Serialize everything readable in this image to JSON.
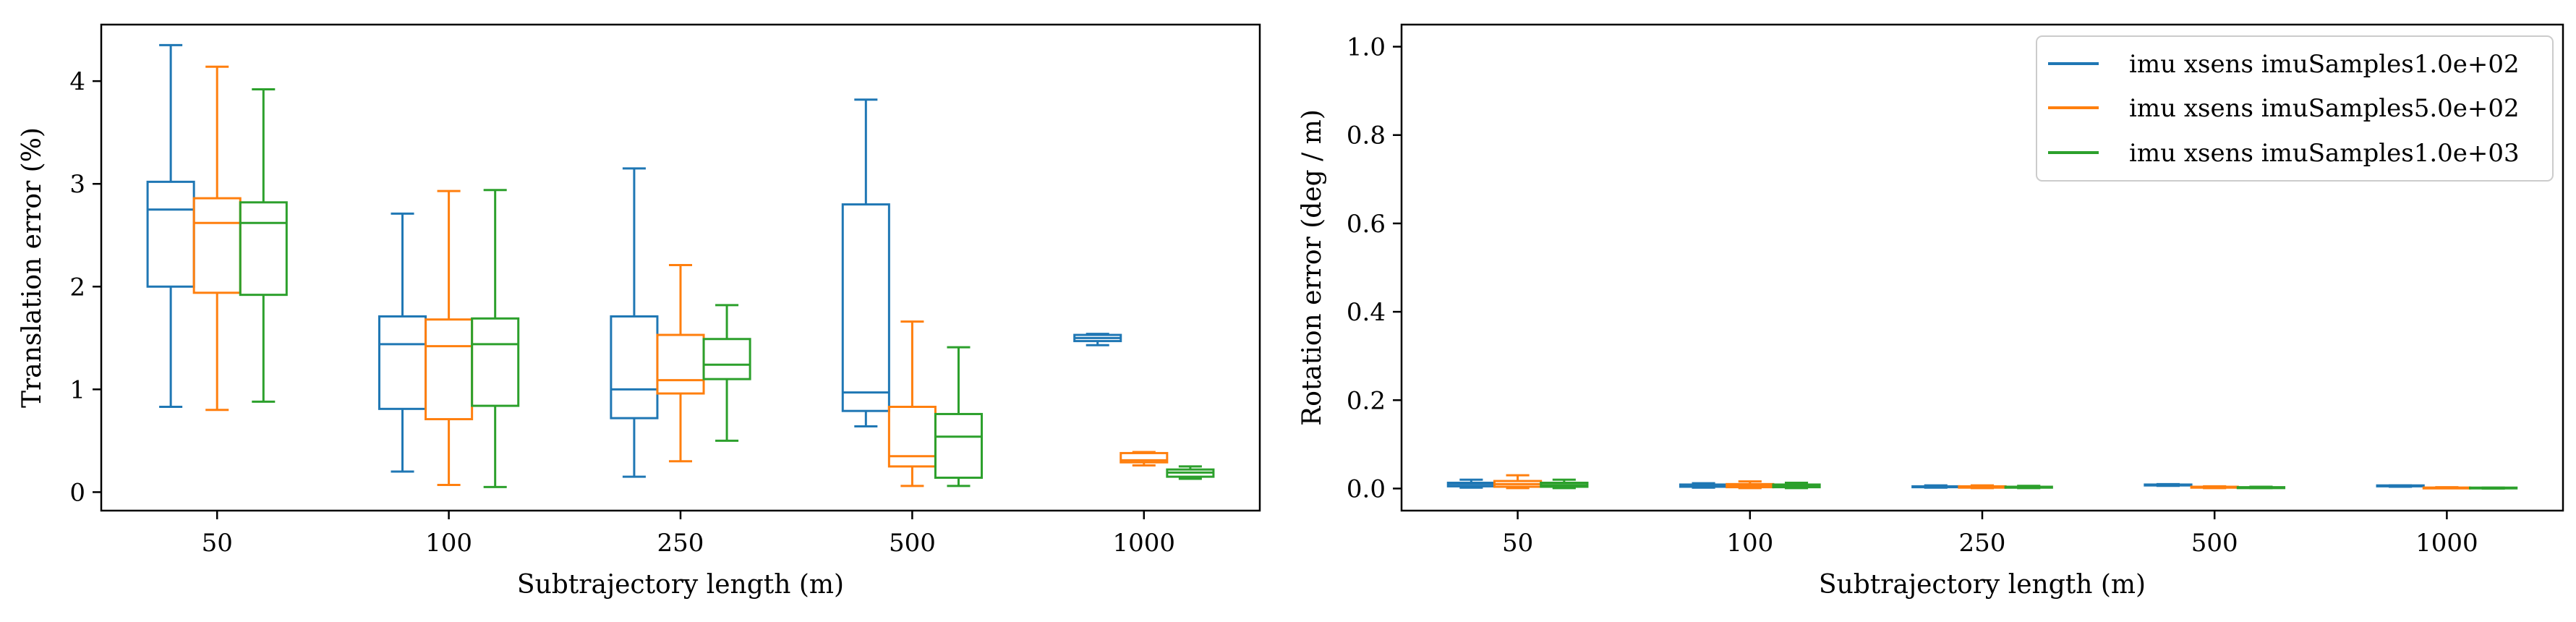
{
  "chart_data": [
    {
      "type": "box",
      "xlabel": "Subtrajectory length (m)",
      "ylabel": "Translation error (%)",
      "categories": [
        "50",
        "100",
        "250",
        "500",
        "1000"
      ],
      "ylim": [
        -0.18,
        4.55
      ],
      "yticks": [
        "0",
        "1",
        "2",
        "3",
        "4"
      ],
      "grid": false,
      "series": [
        {
          "name": "imu xsens imuSamples1.0e+02",
          "color": "#1f77b4",
          "boxes": [
            {
              "whislo": 0.83,
              "q1": 2.0,
              "med": 2.75,
              "q3": 3.02,
              "whishi": 4.35
            },
            {
              "whislo": 0.2,
              "q1": 0.81,
              "med": 1.44,
              "q3": 1.71,
              "whishi": 2.71
            },
            {
              "whislo": 0.15,
              "q1": 0.72,
              "med": 1.0,
              "q3": 1.71,
              "whishi": 3.15
            },
            {
              "whislo": 0.64,
              "q1": 0.79,
              "med": 0.97,
              "q3": 2.8,
              "whishi": 3.82
            },
            {
              "whislo": 1.43,
              "q1": 1.47,
              "med": 1.5,
              "q3": 1.53,
              "whishi": 1.54
            }
          ]
        },
        {
          "name": "imu xsens imuSamples5.0e+02",
          "color": "#ff7f0e",
          "boxes": [
            {
              "whislo": 0.8,
              "q1": 1.94,
              "med": 2.62,
              "q3": 2.86,
              "whishi": 4.14
            },
            {
              "whislo": 0.07,
              "q1": 0.71,
              "med": 1.42,
              "q3": 1.68,
              "whishi": 2.93
            },
            {
              "whislo": 0.3,
              "q1": 0.96,
              "med": 1.09,
              "q3": 1.53,
              "whishi": 2.21
            },
            {
              "whislo": 0.06,
              "q1": 0.25,
              "med": 0.35,
              "q3": 0.83,
              "whishi": 1.66
            },
            {
              "whislo": 0.26,
              "q1": 0.29,
              "med": 0.31,
              "q3": 0.38,
              "whishi": 0.39
            }
          ]
        },
        {
          "name": "imu xsens imuSamples1.0e+03",
          "color": "#2ca02c",
          "boxes": [
            {
              "whislo": 0.88,
              "q1": 1.92,
              "med": 2.62,
              "q3": 2.82,
              "whishi": 3.92
            },
            {
              "whislo": 0.05,
              "q1": 0.84,
              "med": 1.44,
              "q3": 1.69,
              "whishi": 2.94
            },
            {
              "whislo": 0.5,
              "q1": 1.1,
              "med": 1.24,
              "q3": 1.49,
              "whishi": 1.82
            },
            {
              "whislo": 0.06,
              "q1": 0.14,
              "med": 0.54,
              "q3": 0.76,
              "whishi": 1.41
            },
            {
              "whislo": 0.13,
              "q1": 0.15,
              "med": 0.19,
              "q3": 0.22,
              "whishi": 0.25
            }
          ]
        }
      ]
    },
    {
      "type": "box",
      "xlabel": "Subtrajectory length (m)",
      "ylabel": "Rotation error (deg / m)",
      "categories": [
        "50",
        "100",
        "250",
        "500",
        "1000"
      ],
      "ylim": [
        -0.05,
        1.05
      ],
      "yticks": [
        "0.0",
        "0.2",
        "0.4",
        "0.6",
        "0.8",
        "1.0"
      ],
      "grid": false,
      "legend_position": "top-right",
      "series": [
        {
          "name": "imu xsens imuSamples1.0e+02",
          "color": "#1f77b4",
          "boxes": [
            {
              "whislo": 0.002,
              "q1": 0.005,
              "med": 0.01,
              "q3": 0.013,
              "whishi": 0.02
            },
            {
              "whislo": 0.002,
              "q1": 0.004,
              "med": 0.007,
              "q3": 0.009,
              "whishi": 0.012
            },
            {
              "whislo": 0.002,
              "q1": 0.003,
              "med": 0.004,
              "q3": 0.005,
              "whishi": 0.007
            },
            {
              "whislo": 0.006,
              "q1": 0.007,
              "med": 0.008,
              "q3": 0.009,
              "whishi": 0.01
            },
            {
              "whislo": 0.004,
              "q1": 0.005,
              "med": 0.006,
              "q3": 0.007,
              "whishi": 0.007
            }
          ]
        },
        {
          "name": "imu xsens imuSamples5.0e+02",
          "color": "#ff7f0e",
          "boxes": [
            {
              "whislo": 0.001,
              "q1": 0.004,
              "med": 0.01,
              "q3": 0.017,
              "whishi": 0.03
            },
            {
              "whislo": 0.001,
              "q1": 0.003,
              "med": 0.007,
              "q3": 0.01,
              "whishi": 0.016
            },
            {
              "whislo": 0.001,
              "q1": 0.002,
              "med": 0.004,
              "q3": 0.005,
              "whishi": 0.007
            },
            {
              "whislo": 0.001,
              "q1": 0.002,
              "med": 0.003,
              "q3": 0.004,
              "whishi": 0.005
            },
            {
              "whislo": 0.001,
              "q1": 0.001,
              "med": 0.002,
              "q3": 0.002,
              "whishi": 0.003
            }
          ]
        },
        {
          "name": "imu xsens imuSamples1.0e+03",
          "color": "#2ca02c",
          "boxes": [
            {
              "whislo": 0.001,
              "q1": 0.004,
              "med": 0.008,
              "q3": 0.013,
              "whishi": 0.02
            },
            {
              "whislo": 0.001,
              "q1": 0.003,
              "med": 0.006,
              "q3": 0.009,
              "whishi": 0.013
            },
            {
              "whislo": 0.001,
              "q1": 0.002,
              "med": 0.003,
              "q3": 0.004,
              "whishi": 0.006
            },
            {
              "whislo": 0.001,
              "q1": 0.001,
              "med": 0.002,
              "q3": 0.003,
              "whishi": 0.004
            },
            {
              "whislo": 0.0,
              "q1": 0.001,
              "med": 0.001,
              "q3": 0.002,
              "whishi": 0.002
            }
          ]
        }
      ]
    }
  ]
}
